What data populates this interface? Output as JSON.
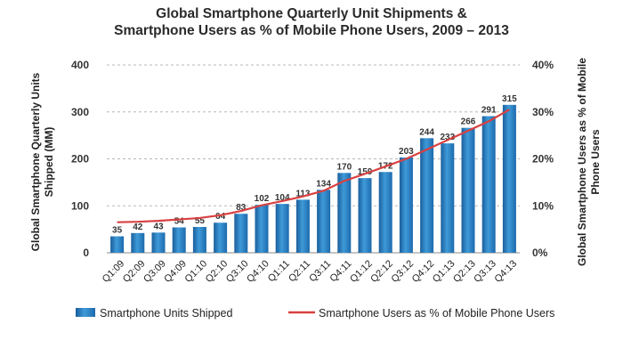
{
  "chart_data": {
    "type": "bar",
    "title_line1": "Global Smartphone Quarterly Unit Shipments &",
    "title_line2": "Smartphone Users as % of Mobile Phone Users, 2009 – 2013",
    "ylabel_left_line1": "Global Smartphone Quarterly Units",
    "ylabel_left_line2": "Shipped (MM)",
    "ylabel_right_line1": "Global Smartphone Users as % of Mobile",
    "ylabel_right_line2": "Phone Users",
    "categories": [
      "Q1:09",
      "Q2:09",
      "Q3:09",
      "Q4:09",
      "Q1:10",
      "Q2:10",
      "Q3:10",
      "Q4:10",
      "Q1:11",
      "Q2:11",
      "Q3:11",
      "Q4:11",
      "Q1:12",
      "Q2:12",
      "Q3:12",
      "Q4:12",
      "Q1:13",
      "Q2:13",
      "Q3:13",
      "Q4:13"
    ],
    "series": [
      {
        "name": "Smartphone Units Shipped",
        "type": "bar",
        "axis": "left",
        "values": [
          35,
          42,
          43,
          54,
          55,
          64,
          83,
          102,
          104,
          113,
          134,
          170,
          159,
          172,
          203,
          244,
          233,
          266,
          291,
          315
        ],
        "color": "#2f7fc1"
      },
      {
        "name": "Smartphone Users as % of Mobile Phone Users",
        "type": "line",
        "axis": "right",
        "values": [
          6.5,
          6.6,
          6.8,
          7.1,
          7.4,
          8.0,
          8.9,
          10.1,
          11.0,
          12.0,
          13.2,
          15.3,
          16.8,
          18.4,
          20.0,
          22.0,
          24.0,
          26.0,
          28.0,
          30.5
        ],
        "color": "#d94040"
      }
    ],
    "ylim_left": [
      0,
      400
    ],
    "yticks_left": [
      "0",
      "100",
      "200",
      "300",
      "400"
    ],
    "ylim_right": [
      0,
      40
    ],
    "yticks_right": [
      "0%",
      "10%",
      "20%",
      "30%",
      "40%"
    ],
    "grid": "horizontal dashed",
    "legend": "bottom"
  }
}
